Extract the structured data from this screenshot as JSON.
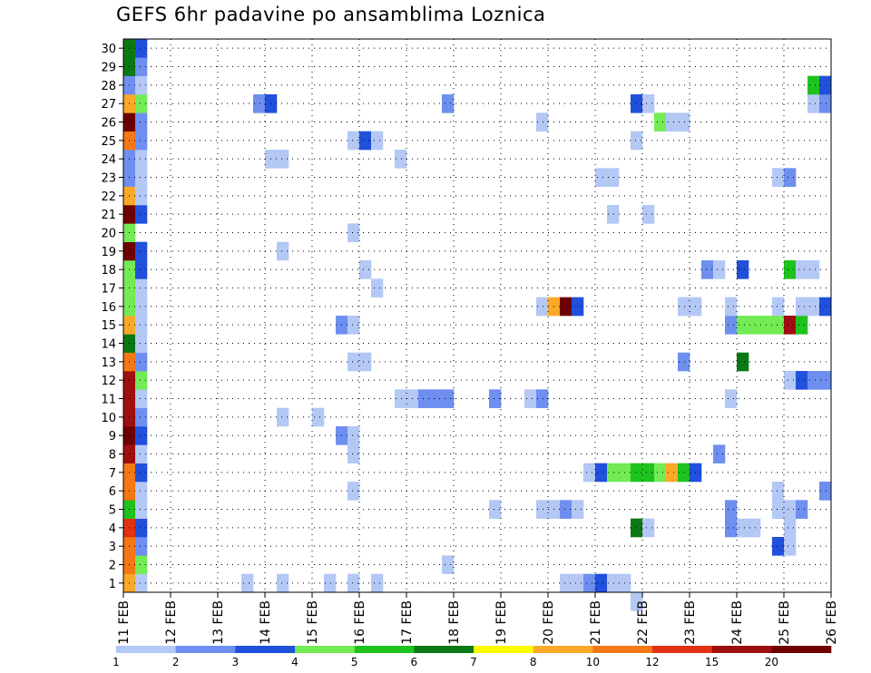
{
  "chart_data": {
    "type": "heatmap",
    "title": "GEFS 6hr padavine po ansamblima Loznica",
    "x_tick_labels": [
      "11 FEB",
      "12 FEB",
      "13 FEB",
      "14 FEB",
      "15 FEB",
      "16 FEB",
      "17 FEB",
      "18 FEB",
      "19 FEB",
      "20 FEB",
      "21 FEB",
      "22 FEB",
      "23 FEB",
      "24 FEB",
      "25 FEB",
      "26 FEB"
    ],
    "y_tick_labels": [
      "1",
      "2",
      "3",
      "4",
      "5",
      "6",
      "7",
      "8",
      "9",
      "10",
      "11",
      "12",
      "13",
      "14",
      "15",
      "16",
      "17",
      "18",
      "19",
      "20",
      "21",
      "22",
      "23",
      "24",
      "25",
      "26",
      "27",
      "28",
      "29",
      "30"
    ],
    "x_range_days": [
      0,
      15
    ],
    "y_range": [
      0,
      30
    ],
    "time_step_hours": 6,
    "grid": true,
    "colorbar": {
      "placement": "bottom",
      "colors": [
        "#b4c8f5",
        "#6e8ff0",
        "#2050dc",
        "#73eb55",
        "#1ec31e",
        "#0a7814",
        "#fafa00",
        "#faaa28",
        "#f57814",
        "#e13214",
        "#a00f0f",
        "#6e0000"
      ],
      "tick_labels": [
        "1",
        "2",
        "3",
        "4",
        "5",
        "6",
        "7",
        "8",
        "10",
        "12",
        "15",
        "20"
      ]
    },
    "cells": [
      [
        "11 FEB 00Z",
        "1",
        "8"
      ],
      [
        "11 FEB 06Z",
        "1",
        "1"
      ],
      [
        "11 FEB 00Z",
        "2",
        "10"
      ],
      [
        "11 FEB 06Z",
        "2",
        "4"
      ],
      [
        "11 FEB 00Z",
        "3",
        "10"
      ],
      [
        "11 FEB 06Z",
        "3",
        "2"
      ],
      [
        "11 FEB 00Z",
        "4",
        "12"
      ],
      [
        "11 FEB 06Z",
        "4",
        "3"
      ],
      [
        "11 FEB 00Z",
        "5",
        "5"
      ],
      [
        "11 FEB 06Z",
        "5",
        "1"
      ],
      [
        "11 FEB 00Z",
        "6",
        "10"
      ],
      [
        "11 FEB 06Z",
        "6",
        "1"
      ],
      [
        "11 FEB 00Z",
        "7",
        "10"
      ],
      [
        "11 FEB 06Z",
        "7",
        "3"
      ],
      [
        "11 FEB 00Z",
        "8",
        "15"
      ],
      [
        "11 FEB 06Z",
        "8",
        "1"
      ],
      [
        "11 FEB 00Z",
        "9",
        "20"
      ],
      [
        "11 FEB 06Z",
        "9",
        "3"
      ],
      [
        "11 FEB 00Z",
        "10",
        "15"
      ],
      [
        "11 FEB 06Z",
        "10",
        "2"
      ],
      [
        "11 FEB 00Z",
        "11",
        "15"
      ],
      [
        "11 FEB 06Z",
        "11",
        "1"
      ],
      [
        "11 FEB 00Z",
        "12",
        "15"
      ],
      [
        "11 FEB 06Z",
        "12",
        "4"
      ],
      [
        "11 FEB 00Z",
        "13",
        "10"
      ],
      [
        "11 FEB 06Z",
        "13",
        "2"
      ],
      [
        "11 FEB 00Z",
        "14",
        "6"
      ],
      [
        "11 FEB 06Z",
        "14",
        "1"
      ],
      [
        "11 FEB 00Z",
        "15",
        "8"
      ],
      [
        "11 FEB 06Z",
        "15",
        "1"
      ],
      [
        "11 FEB 00Z",
        "16",
        "4"
      ],
      [
        "11 FEB 06Z",
        "16",
        "1"
      ],
      [
        "11 FEB 00Z",
        "17",
        "4"
      ],
      [
        "11 FEB 06Z",
        "17",
        "1"
      ],
      [
        "11 FEB 00Z",
        "18",
        "4"
      ],
      [
        "11 FEB 06Z",
        "18",
        "3"
      ],
      [
        "11 FEB 00Z",
        "19",
        "20"
      ],
      [
        "11 FEB 06Z",
        "19",
        "3"
      ],
      [
        "11 FEB 00Z",
        "20",
        "4"
      ],
      [
        "11 FEB 00Z",
        "21",
        "20"
      ],
      [
        "11 FEB 06Z",
        "21",
        "3"
      ],
      [
        "11 FEB 00Z",
        "22",
        "8"
      ],
      [
        "11 FEB 06Z",
        "22",
        "1"
      ],
      [
        "11 FEB 00Z",
        "23",
        "2"
      ],
      [
        "11 FEB 06Z",
        "23",
        "1"
      ],
      [
        "11 FEB 00Z",
        "24",
        "2"
      ],
      [
        "11 FEB 06Z",
        "24",
        "1"
      ],
      [
        "11 FEB 00Z",
        "25",
        "10"
      ],
      [
        "11 FEB 06Z",
        "25",
        "2"
      ],
      [
        "11 FEB 00Z",
        "26",
        "20"
      ],
      [
        "11 FEB 06Z",
        "26",
        "2"
      ],
      [
        "11 FEB 00Z",
        "27",
        "8"
      ],
      [
        "11 FEB 06Z",
        "27",
        "4"
      ],
      [
        "11 FEB 00Z",
        "28",
        "2"
      ],
      [
        "11 FEB 06Z",
        "28",
        "1"
      ],
      [
        "11 FEB 00Z",
        "29",
        "6"
      ],
      [
        "11 FEB 06Z",
        "29",
        "2"
      ],
      [
        "11 FEB 00Z",
        "30",
        "6"
      ],
      [
        "11 FEB 06Z",
        "30",
        "3"
      ],
      [
        "13 FEB 12Z",
        "1",
        "1"
      ],
      [
        "14 FEB 06Z",
        "1",
        "1"
      ],
      [
        "15 FEB 06Z",
        "1",
        "1"
      ],
      [
        "15 FEB 18Z",
        "1",
        "1"
      ],
      [
        "16 FEB 06Z",
        "1",
        "1"
      ],
      [
        "20 FEB 06Z",
        "1",
        "1"
      ],
      [
        "20 FEB 12Z",
        "1",
        "1"
      ],
      [
        "20 FEB 18Z",
        "1",
        "2"
      ],
      [
        "21 FEB 00Z",
        "1",
        "3"
      ],
      [
        "21 FEB 06Z",
        "1",
        "1"
      ],
      [
        "21 FEB 12Z",
        "1",
        "1"
      ],
      [
        "17 FEB 18Z",
        "2",
        "1"
      ],
      [
        "21 FEB 18Z",
        "0",
        "1"
      ],
      [
        "24 FEB 18Z",
        "3",
        "3"
      ],
      [
        "25 FEB 00Z",
        "3",
        "1"
      ],
      [
        "21 FEB 18Z",
        "4",
        "6"
      ],
      [
        "22 FEB 00Z",
        "4",
        "1"
      ],
      [
        "23 FEB 18Z",
        "4",
        "2"
      ],
      [
        "24 FEB 00Z",
        "4",
        "1"
      ],
      [
        "24 FEB 06Z",
        "4",
        "1"
      ],
      [
        "25 FEB 00Z",
        "4",
        "1"
      ],
      [
        "18 FEB 18Z",
        "5",
        "1"
      ],
      [
        "19 FEB 18Z",
        "5",
        "1"
      ],
      [
        "20 FEB 00Z",
        "5",
        "1"
      ],
      [
        "20 FEB 06Z",
        "5",
        "2"
      ],
      [
        "20 FEB 12Z",
        "5",
        "1"
      ],
      [
        "23 FEB 18Z",
        "5",
        "2"
      ],
      [
        "24 FEB 18Z",
        "5",
        "1"
      ],
      [
        "25 FEB 00Z",
        "5",
        "1"
      ],
      [
        "25 FEB 06Z",
        "5",
        "2"
      ],
      [
        "15 FEB 18Z",
        "6",
        "1"
      ],
      [
        "24 FEB 18Z",
        "6",
        "1"
      ],
      [
        "25 FEB 18Z",
        "6",
        "2"
      ],
      [
        "20 FEB 18Z",
        "7",
        "1"
      ],
      [
        "21 FEB 00Z",
        "7",
        "3"
      ],
      [
        "21 FEB 06Z",
        "7",
        "4"
      ],
      [
        "21 FEB 12Z",
        "7",
        "4"
      ],
      [
        "21 FEB 18Z",
        "7",
        "5"
      ],
      [
        "22 FEB 00Z",
        "7",
        "5"
      ],
      [
        "22 FEB 06Z",
        "7",
        "4"
      ],
      [
        "22 FEB 12Z",
        "7",
        "8"
      ],
      [
        "22 FEB 18Z",
        "7",
        "5"
      ],
      [
        "23 FEB 00Z",
        "7",
        "3"
      ],
      [
        "15 FEB 18Z",
        "8",
        "1"
      ],
      [
        "23 FEB 12Z",
        "8",
        "2"
      ],
      [
        "15 FEB 12Z",
        "9",
        "2"
      ],
      [
        "15 FEB 18Z",
        "9",
        "1"
      ],
      [
        "15 FEB 00Z",
        "10",
        "1"
      ],
      [
        "14 FEB 06Z",
        "10",
        "1"
      ],
      [
        "16 FEB 18Z",
        "11",
        "1"
      ],
      [
        "17 FEB 00Z",
        "11",
        "1"
      ],
      [
        "17 FEB 06Z",
        "11",
        "2"
      ],
      [
        "17 FEB 12Z",
        "11",
        "2"
      ],
      [
        "17 FEB 18Z",
        "11",
        "2"
      ],
      [
        "18 FEB 18Z",
        "11",
        "2"
      ],
      [
        "19 FEB 12Z",
        "11",
        "1"
      ],
      [
        "19 FEB 18Z",
        "11",
        "2"
      ],
      [
        "23 FEB 18Z",
        "11",
        "1"
      ],
      [
        "25 FEB 00Z",
        "12",
        "1"
      ],
      [
        "25 FEB 06Z",
        "12",
        "3"
      ],
      [
        "25 FEB 12Z",
        "12",
        "2"
      ],
      [
        "25 FEB 18Z",
        "12",
        "2"
      ],
      [
        "15 FEB 18Z",
        "13",
        "1"
      ],
      [
        "16 FEB 00Z",
        "13",
        "1"
      ],
      [
        "22 FEB 18Z",
        "13",
        "2"
      ],
      [
        "24 FEB 00Z",
        "13",
        "6"
      ],
      [
        "15 FEB 12Z",
        "15",
        "2"
      ],
      [
        "15 FEB 18Z",
        "15",
        "1"
      ],
      [
        "23 FEB 18Z",
        "15",
        "2"
      ],
      [
        "24 FEB 00Z",
        "15",
        "4"
      ],
      [
        "24 FEB 06Z",
        "15",
        "4"
      ],
      [
        "24 FEB 12Z",
        "15",
        "4"
      ],
      [
        "24 FEB 18Z",
        "15",
        "4"
      ],
      [
        "25 FEB 00Z",
        "15",
        "15"
      ],
      [
        "25 FEB 06Z",
        "15",
        "5"
      ],
      [
        "19 FEB 18Z",
        "16",
        "1"
      ],
      [
        "20 FEB 00Z",
        "16",
        "8"
      ],
      [
        "20 FEB 06Z",
        "16",
        "20"
      ],
      [
        "20 FEB 12Z",
        "16",
        "3"
      ],
      [
        "22 FEB 18Z",
        "16",
        "1"
      ],
      [
        "23 FEB 00Z",
        "16",
        "1"
      ],
      [
        "23 FEB 18Z",
        "16",
        "1"
      ],
      [
        "24 FEB 18Z",
        "16",
        "1"
      ],
      [
        "25 FEB 06Z",
        "16",
        "1"
      ],
      [
        "25 FEB 12Z",
        "16",
        "1"
      ],
      [
        "25 FEB 18Z",
        "16",
        "3"
      ],
      [
        "16 FEB 06Z",
        "17",
        "1"
      ],
      [
        "16 FEB 00Z",
        "18",
        "1"
      ],
      [
        "23 FEB 06Z",
        "18",
        "2"
      ],
      [
        "23 FEB 12Z",
        "18",
        "1"
      ],
      [
        "24 FEB 00Z",
        "18",
        "3"
      ],
      [
        "25 FEB 00Z",
        "18",
        "5"
      ],
      [
        "25 FEB 06Z",
        "18",
        "1"
      ],
      [
        "25 FEB 12Z",
        "18",
        "1"
      ],
      [
        "14 FEB 06Z",
        "19",
        "1"
      ],
      [
        "15 FEB 18Z",
        "20",
        "1"
      ],
      [
        "21 FEB 06Z",
        "21",
        "1"
      ],
      [
        "22 FEB 00Z",
        "21",
        "1"
      ],
      [
        "21 FEB 00Z",
        "23",
        "1"
      ],
      [
        "21 FEB 06Z",
        "23",
        "1"
      ],
      [
        "24 FEB 18Z",
        "23",
        "1"
      ],
      [
        "25 FEB 00Z",
        "23",
        "2"
      ],
      [
        "14 FEB 00Z",
        "24",
        "1"
      ],
      [
        "14 FEB 06Z",
        "24",
        "1"
      ],
      [
        "16 FEB 18Z",
        "24",
        "1"
      ],
      [
        "15 FEB 18Z",
        "25",
        "1"
      ],
      [
        "16 FEB 00Z",
        "25",
        "3"
      ],
      [
        "16 FEB 06Z",
        "25",
        "1"
      ],
      [
        "21 FEB 18Z",
        "25",
        "1"
      ],
      [
        "19 FEB 18Z",
        "26",
        "1"
      ],
      [
        "22 FEB 06Z",
        "26",
        "4"
      ],
      [
        "22 FEB 12Z",
        "26",
        "1"
      ],
      [
        "22 FEB 18Z",
        "26",
        "1"
      ],
      [
        "13 FEB 18Z",
        "27",
        "2"
      ],
      [
        "14 FEB 00Z",
        "27",
        "3"
      ],
      [
        "17 FEB 18Z",
        "27",
        "2"
      ],
      [
        "21 FEB 18Z",
        "27",
        "3"
      ],
      [
        "22 FEB 00Z",
        "27",
        "1"
      ],
      [
        "25 FEB 12Z",
        "27",
        "1"
      ],
      [
        "25 FEB 18Z",
        "27",
        "2"
      ],
      [
        "25 FEB 12Z",
        "28",
        "5"
      ],
      [
        "25 FEB 18Z",
        "28",
        "3"
      ]
    ]
  }
}
